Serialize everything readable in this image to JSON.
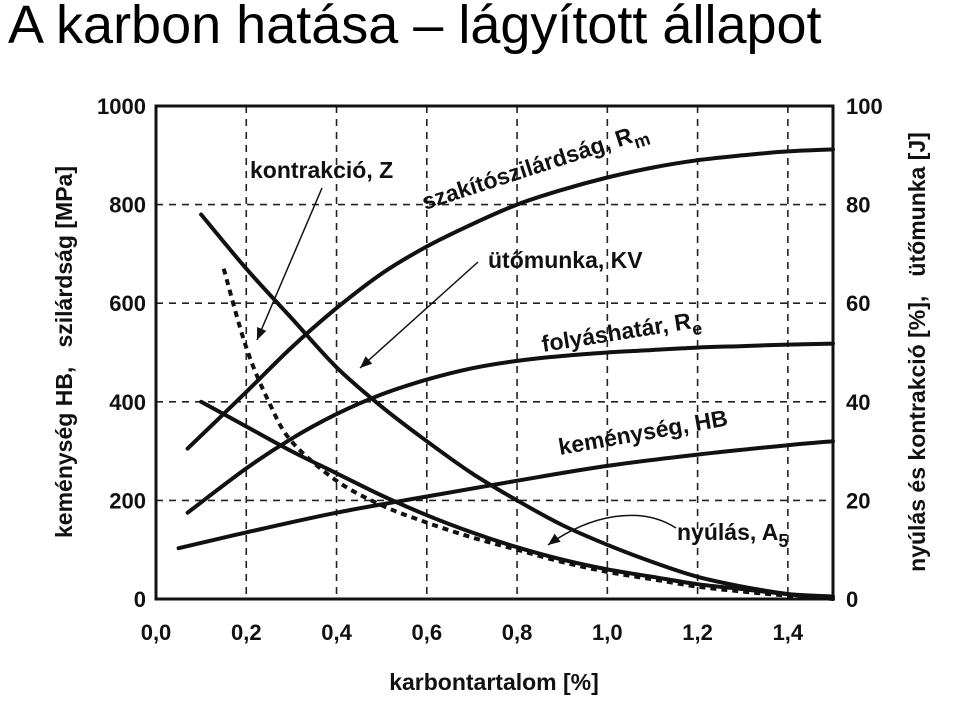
{
  "slide": {
    "title": "A karbon hatása – lágyított állapot"
  },
  "chart_data": {
    "type": "line",
    "xlabel": "karbontartalom [%]",
    "ylabel_left": "keménység HB,   szilárdság [MPa]",
    "ylabel_right": "nyúlás és kontrakció [%],   ütőmunka [J]",
    "xlim": [
      0,
      1.5
    ],
    "ylim_left": [
      0,
      1000
    ],
    "ylim_right": [
      0,
      100
    ],
    "grid": true,
    "x_ticks": [
      "0,0",
      "0,2",
      "0,4",
      "0,6",
      "0,8",
      "1,0",
      "1,2",
      "1,4"
    ],
    "y_left_ticks": [
      "0",
      "200",
      "400",
      "600",
      "800",
      "1000"
    ],
    "y_right_ticks": [
      "0",
      "20",
      "40",
      "60",
      "80",
      "100"
    ],
    "series": [
      {
        "name": "szakítószilárdság, Rm",
        "axis": "left",
        "x": [
          0.07,
          0.2,
          0.3,
          0.4,
          0.5,
          0.6,
          0.7,
          0.8,
          0.9,
          1.0,
          1.1,
          1.2,
          1.3,
          1.4,
          1.5
        ],
        "y": [
          305,
          420,
          510,
          590,
          660,
          715,
          760,
          800,
          830,
          855,
          875,
          890,
          900,
          908,
          912
        ]
      },
      {
        "name": "folyáshatár, Re",
        "axis": "left",
        "x": [
          0.07,
          0.2,
          0.3,
          0.4,
          0.5,
          0.6,
          0.7,
          0.8,
          0.9,
          1.0,
          1.1,
          1.2,
          1.3,
          1.4,
          1.5
        ],
        "y": [
          175,
          265,
          325,
          375,
          415,
          445,
          468,
          483,
          493,
          500,
          505,
          510,
          513,
          516,
          518
        ]
      },
      {
        "name": "keménység, HB",
        "axis": "left",
        "x": [
          0.05,
          0.2,
          0.4,
          0.6,
          0.8,
          1.0,
          1.2,
          1.4,
          1.5
        ],
        "y": [
          103,
          135,
          175,
          208,
          240,
          270,
          293,
          312,
          320
        ]
      },
      {
        "name": "kontrakció, Z",
        "axis": "right",
        "x": [
          0.1,
          0.2,
          0.3,
          0.4,
          0.5,
          0.6,
          0.7,
          0.8,
          0.9,
          1.0,
          1.1,
          1.2,
          1.3,
          1.4,
          1.5
        ],
        "y": [
          78,
          67,
          57,
          47,
          39,
          32,
          25.5,
          20,
          15,
          11,
          7.5,
          4.5,
          2.5,
          1,
          0
        ]
      },
      {
        "name": "ütőmunka, KV",
        "axis": "right",
        "x": [
          0.15,
          0.2,
          0.25,
          0.3,
          0.4,
          0.5,
          0.6,
          0.7,
          0.8,
          0.9,
          1.0,
          1.1,
          1.2,
          1.3,
          1.4,
          1.5
        ],
        "y": [
          67,
          51,
          40,
          32,
          24,
          19,
          15.5,
          12.5,
          10,
          7.5,
          5.5,
          4,
          2.5,
          1.5,
          0.7,
          0.3
        ],
        "dashed": true
      },
      {
        "name": "nyúlás, A5",
        "axis": "right",
        "x": [
          0.1,
          0.2,
          0.3,
          0.4,
          0.5,
          0.6,
          0.7,
          0.8,
          0.9,
          1.0,
          1.1,
          1.2,
          1.3,
          1.4,
          1.5
        ],
        "y": [
          40,
          35,
          30,
          25.5,
          21,
          17,
          13.5,
          10.5,
          8,
          6,
          4.5,
          3,
          2,
          1,
          0.5
        ]
      }
    ],
    "annotations": [
      {
        "text": "kontrakció, Z",
        "series": "kontrakció, Z"
      },
      {
        "text": "szakítószilárdság, R",
        "sub": "m",
        "series": "szakítószilárdság, Rm"
      },
      {
        "text": "ütőmunka, KV",
        "series": "ütőmunka, KV"
      },
      {
        "text": "folyáshatár, R",
        "sub": "e",
        "series": "folyáshatár, Re"
      },
      {
        "text": "keménység, HB",
        "series": "keménység, HB"
      },
      {
        "text": "nyúlás, A",
        "sub": "5",
        "series": "nyúlás, A5"
      }
    ]
  }
}
